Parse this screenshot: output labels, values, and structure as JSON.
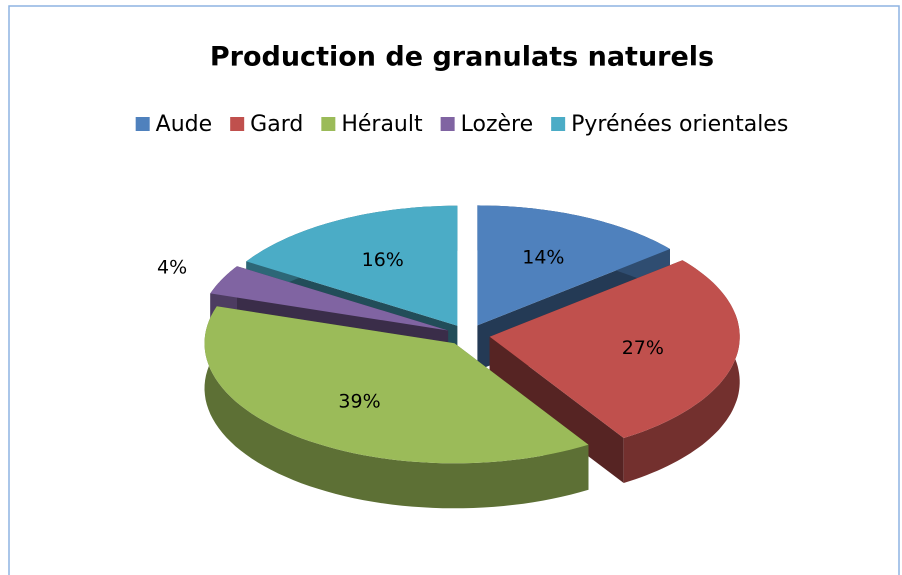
{
  "chart_data": {
    "type": "pie",
    "title": "Production de granulats naturels",
    "categories": [
      "Aude",
      "Gard",
      "Hérault",
      "Lozère",
      "Pyrénées orientales"
    ],
    "values": [
      14,
      27,
      39,
      4,
      16
    ],
    "value_labels": [
      "14%",
      "27%",
      "39%",
      "4%",
      "16%"
    ],
    "colors": [
      "#4f81bd",
      "#c0504d",
      "#9bbb59",
      "#8064a2",
      "#4bacc6"
    ],
    "legend": "top"
  }
}
